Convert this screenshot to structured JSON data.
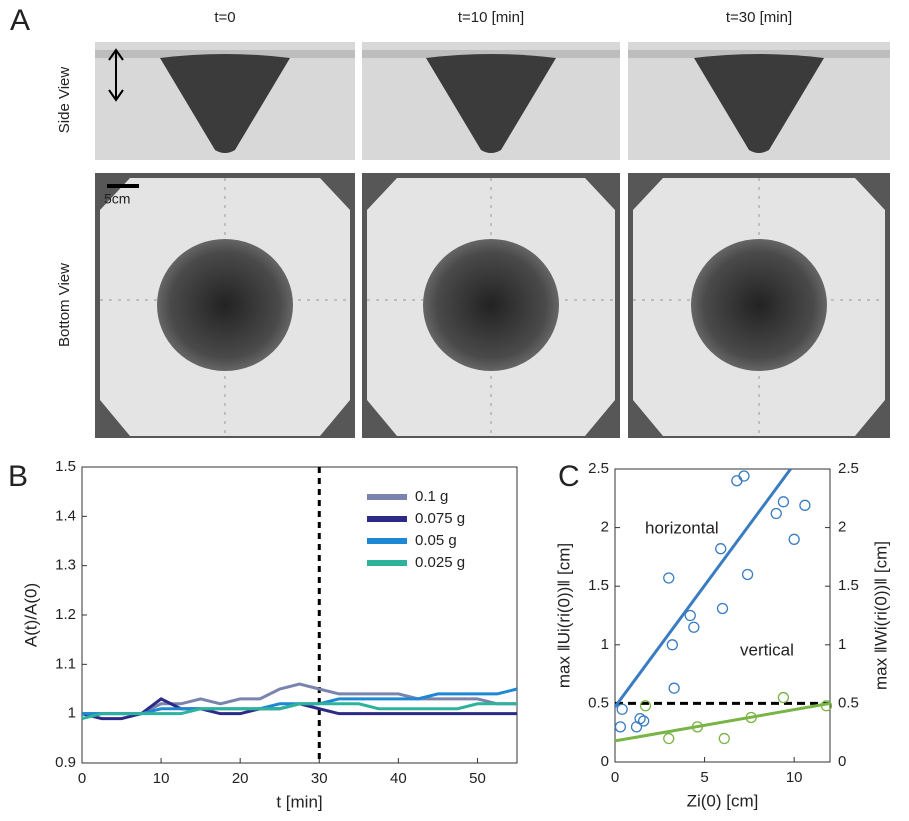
{
  "panel_a": {
    "label": "A",
    "columns": [
      "t=0",
      "t=10 [min]",
      "t=30 [min]"
    ],
    "rows": [
      "Side View",
      "Bottom View"
    ],
    "scale_bar": "5cm"
  },
  "chart_data": [
    {
      "type": "line",
      "label": "B",
      "xlabel": "t [min]",
      "ylabel": "A(t)/A(0)",
      "xlim": [
        0,
        55
      ],
      "xticks": [
        0,
        10,
        20,
        30,
        40,
        50
      ],
      "ylim": [
        0.9,
        1.5
      ],
      "yticks": [
        0.9,
        1,
        1.1,
        1.2,
        1.3,
        1.4,
        1.5
      ],
      "vline": 30,
      "legend": "upper right",
      "x": [
        0,
        2.5,
        5,
        7.5,
        10,
        12.5,
        15,
        17.5,
        20,
        22.5,
        25,
        27.5,
        30,
        32.5,
        35,
        37.5,
        40,
        42.5,
        45,
        47.5,
        50,
        52.5,
        55
      ],
      "series": [
        {
          "name": "0.1 g",
          "color": "#7a84ad",
          "values": [
            1.0,
            1.0,
            1.0,
            1.0,
            1.02,
            1.02,
            1.03,
            1.02,
            1.03,
            1.03,
            1.05,
            1.06,
            1.05,
            1.04,
            1.04,
            1.04,
            1.04,
            1.03,
            1.03,
            1.03,
            1.03,
            1.02,
            1.02
          ]
        },
        {
          "name": "0.075 g",
          "color": "#2d2a86",
          "values": [
            1.0,
            0.99,
            0.99,
            1.0,
            1.03,
            1.01,
            1.01,
            1.0,
            1.0,
            1.01,
            1.01,
            1.02,
            1.01,
            1.0,
            1.0,
            1.0,
            1.0,
            1.0,
            1.0,
            1.0,
            1.0,
            1.0,
            1.0
          ]
        },
        {
          "name": "0.05 g",
          "color": "#1e88d4",
          "values": [
            1.0,
            1.0,
            1.0,
            1.0,
            1.01,
            1.01,
            1.01,
            1.01,
            1.01,
            1.01,
            1.02,
            1.02,
            1.02,
            1.03,
            1.03,
            1.03,
            1.03,
            1.03,
            1.04,
            1.04,
            1.04,
            1.04,
            1.05
          ]
        },
        {
          "name": "0.025 g",
          "color": "#2db39c",
          "values": [
            0.99,
            1.0,
            1.0,
            1.0,
            1.0,
            1.0,
            1.01,
            1.01,
            1.01,
            1.01,
            1.01,
            1.02,
            1.02,
            1.02,
            1.02,
            1.01,
            1.01,
            1.01,
            1.01,
            1.01,
            1.02,
            1.02,
            1.02
          ]
        }
      ]
    },
    {
      "type": "scatter",
      "label": "C",
      "xlabel": "Zi(0) [cm]",
      "ylabel": "max ‖Ui(ri(0))‖ [cm]",
      "y2label": "max ‖Wi(ri(0))‖ [cm]",
      "xlim": [
        0,
        12
      ],
      "xticks": [
        0,
        5,
        10
      ],
      "ylim": [
        0,
        2.5
      ],
      "yticks": [
        0,
        0.5,
        1,
        1.5,
        2,
        2.5
      ],
      "y2lim": [
        0,
        2.5
      ],
      "y2ticks": [
        0,
        0.5,
        1,
        1.5,
        2,
        2.5
      ],
      "hline": 0.5,
      "series": [
        {
          "name": "horizontal",
          "color": "#3a7cc2",
          "x": [
            0.3,
            0.4,
            1.2,
            1.4,
            1.6,
            3.0,
            3.2,
            3.3,
            4.2,
            4.4,
            5.9,
            6.0,
            6.8,
            7.2,
            7.4,
            9.0,
            9.4,
            10.0,
            10.6
          ],
          "values": [
            0.3,
            0.45,
            0.3,
            0.37,
            0.35,
            1.57,
            1.0,
            0.63,
            1.25,
            1.15,
            1.82,
            1.31,
            2.4,
            2.44,
            1.6,
            2.12,
            2.22,
            1.9,
            2.19
          ],
          "fit": {
            "x": [
              0,
              9.8
            ],
            "values": [
              0.47,
              2.5
            ]
          }
        },
        {
          "name": "vertical",
          "color": "#78b446",
          "axis": "y2",
          "x": [
            1.7,
            3.0,
            4.6,
            6.1,
            7.6,
            9.4,
            11.8
          ],
          "values": [
            0.48,
            0.2,
            0.3,
            0.2,
            0.38,
            0.55,
            0.48
          ],
          "fit": {
            "x": [
              0,
              12
            ],
            "values": [
              0.18,
              0.5
            ]
          }
        }
      ]
    }
  ]
}
